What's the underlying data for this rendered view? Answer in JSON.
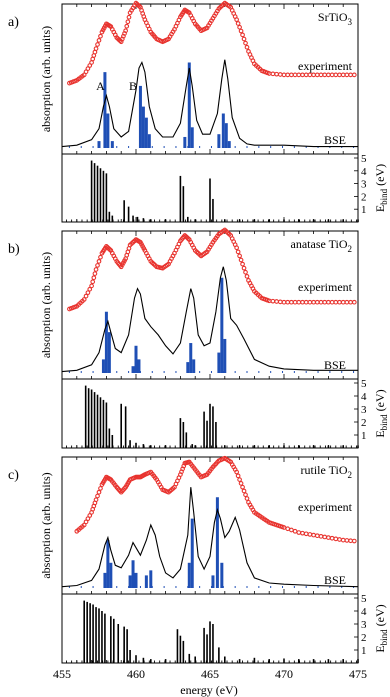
{
  "figure": {
    "x_axis_label": "energy (eV)",
    "y_axis_label_abs": "absorption (arb. units)",
    "y_axis_label_bind_main": "E",
    "y_axis_label_bind_sub": "bind",
    "y_axis_label_bind_unit": "(eV)",
    "x_ticks": [
      "455",
      "460",
      "465",
      "470",
      "475"
    ],
    "bind_ticks": [
      "1",
      "2",
      "3",
      "4",
      "5"
    ]
  },
  "chart_data": [
    {
      "panel": "a)",
      "material": "SrTiO",
      "material_sub": "3",
      "type": "line",
      "xlim": [
        455,
        475
      ],
      "series": [
        {
          "name": "experiment",
          "color": "#e8332e",
          "style": "circles",
          "x": [
            455.5,
            456.0,
            456.5,
            457.0,
            457.3,
            457.7,
            458.0,
            458.3,
            458.7,
            459.0,
            459.3,
            459.6,
            460.0,
            460.3,
            460.6,
            461.0,
            461.4,
            461.8,
            462.2,
            462.6,
            463.0,
            463.3,
            463.6,
            464.0,
            464.4,
            464.8,
            465.2,
            465.6,
            466.0,
            466.4,
            466.8,
            467.2,
            467.6,
            468.0,
            468.5,
            469.0,
            470,
            471,
            472,
            473,
            474,
            475
          ],
          "y": [
            0.47,
            0.49,
            0.53,
            0.62,
            0.72,
            0.84,
            0.9,
            0.88,
            0.8,
            0.77,
            0.85,
            0.98,
            1.05,
            1.02,
            0.93,
            0.84,
            0.79,
            0.77,
            0.79,
            0.86,
            0.95,
            1.0,
            0.98,
            0.9,
            0.85,
            0.87,
            0.94,
            1.01,
            1.05,
            1.02,
            0.93,
            0.82,
            0.7,
            0.61,
            0.56,
            0.54,
            0.53,
            0.53,
            0.53,
            0.53,
            0.53,
            0.53
          ]
        },
        {
          "name": "BSE",
          "color": "#000000",
          "style": "line",
          "x": [
            455,
            456,
            457,
            457.5,
            457.8,
            458.0,
            458.2,
            458.5,
            459.0,
            459.5,
            460.0,
            460.2,
            460.4,
            460.6,
            460.9,
            461.3,
            461.8,
            462.5,
            463.0,
            463.4,
            463.6,
            463.8,
            464.1,
            464.5,
            465.0,
            465.5,
            465.8,
            466.0,
            466.2,
            466.5,
            467.0,
            467.5,
            468,
            469,
            470,
            472,
            475
          ],
          "y": [
            0.01,
            0.02,
            0.06,
            0.14,
            0.3,
            0.38,
            0.3,
            0.14,
            0.08,
            0.12,
            0.42,
            0.58,
            0.62,
            0.55,
            0.3,
            0.14,
            0.08,
            0.08,
            0.18,
            0.45,
            0.58,
            0.45,
            0.2,
            0.1,
            0.1,
            0.25,
            0.5,
            0.64,
            0.5,
            0.22,
            0.07,
            0.03,
            0.02,
            0.02,
            0.02,
            0.01,
            0.01
          ]
        }
      ],
      "stick_spectrum": {
        "color": "#1f4fb5",
        "x": [
          457.5,
          457.9,
          458.1,
          458.4,
          460.3,
          460.5,
          460.7,
          460.9,
          463.3,
          463.6,
          463.8,
          465.6,
          465.9,
          466.1,
          466.3
        ],
        "y": [
          0.05,
          0.55,
          0.25,
          0.05,
          0.45,
          0.3,
          0.22,
          0.1,
          0.08,
          0.62,
          0.15,
          0.1,
          0.25,
          0.18,
          0.05
        ]
      },
      "peak_labels": [
        {
          "text": "A",
          "x": 457.6
        },
        {
          "text": "B",
          "x": 459.8
        }
      ],
      "binding_energies": {
        "ylim": [
          0,
          5
        ],
        "x": [
          457.0,
          457.2,
          457.4,
          457.6,
          457.8,
          458.0,
          458.2,
          458.4,
          459.2,
          459.5,
          459.8,
          460.1,
          460.5,
          461.0,
          462.0,
          463.0,
          463.2,
          463.5,
          464.0,
          465.0,
          465.2,
          466,
          467,
          468,
          469,
          470,
          471,
          472,
          473,
          474,
          475
        ],
        "y": [
          4.8,
          4.6,
          4.4,
          4.2,
          4.0,
          3.8,
          0.8,
          0.5,
          1.7,
          1.2,
          0.5,
          0.4,
          0.3,
          0.2,
          0.2,
          3.6,
          2.8,
          0.4,
          0.2,
          3.4,
          1.8,
          0.2,
          0.2,
          0.2,
          0.2,
          0.2,
          0.2,
          0.2,
          0.2,
          0.2,
          0.2
        ]
      }
    },
    {
      "panel": "b)",
      "material": "anatase TiO",
      "material_sub": "2",
      "type": "line",
      "xlim": [
        455,
        475
      ],
      "series": [
        {
          "name": "experiment",
          "color": "#e8332e",
          "style": "circles",
          "x": [
            455.5,
            456.0,
            456.5,
            457.0,
            457.3,
            457.7,
            458.0,
            458.3,
            458.7,
            459.0,
            459.3,
            459.6,
            460.0,
            460.3,
            460.6,
            461.0,
            461.4,
            461.8,
            462.2,
            462.6,
            463.0,
            463.3,
            463.6,
            464.0,
            464.4,
            464.8,
            465.2,
            465.6,
            466.0,
            466.4,
            466.8,
            467.2,
            467.6,
            468.0,
            468.5,
            469.0,
            470,
            471,
            472,
            473,
            474,
            475
          ],
          "y": [
            0.47,
            0.49,
            0.54,
            0.64,
            0.76,
            0.88,
            0.93,
            0.9,
            0.82,
            0.78,
            0.84,
            0.94,
            0.98,
            0.96,
            0.9,
            0.82,
            0.78,
            0.77,
            0.8,
            0.88,
            0.97,
            1.01,
            0.98,
            0.9,
            0.86,
            0.89,
            0.96,
            1.02,
            1.05,
            1.01,
            0.92,
            0.8,
            0.68,
            0.6,
            0.55,
            0.53,
            0.52,
            0.52,
            0.52,
            0.52,
            0.52,
            0.52
          ]
        },
        {
          "name": "BSE",
          "color": "#000000",
          "style": "line",
          "x": [
            455,
            456,
            457,
            457.5,
            457.9,
            458.1,
            458.3,
            458.6,
            459.0,
            459.5,
            459.9,
            460.1,
            460.3,
            460.6,
            461.0,
            461.5,
            462.0,
            462.5,
            463.0,
            463.4,
            463.7,
            463.9,
            464.2,
            464.6,
            465.0,
            465.4,
            465.7,
            465.9,
            466.1,
            466.4,
            466.8,
            467.3,
            468,
            469,
            470,
            472,
            475
          ],
          "y": [
            0.01,
            0.02,
            0.06,
            0.15,
            0.32,
            0.38,
            0.3,
            0.18,
            0.15,
            0.28,
            0.55,
            0.62,
            0.58,
            0.4,
            0.34,
            0.28,
            0.2,
            0.14,
            0.22,
            0.45,
            0.62,
            0.55,
            0.28,
            0.2,
            0.22,
            0.45,
            0.7,
            0.78,
            0.68,
            0.4,
            0.35,
            0.25,
            0.1,
            0.05,
            0.03,
            0.02,
            0.02
          ]
        }
      ],
      "stick_spectrum": {
        "color": "#1f4fb5",
        "x": [
          457.8,
          458.0,
          458.2,
          459.8,
          460.0,
          460.2,
          463.5,
          463.7,
          463.9,
          465.6,
          465.8,
          466.0
        ],
        "y": [
          0.1,
          0.45,
          0.3,
          0.05,
          0.2,
          0.1,
          0.08,
          0.22,
          0.1,
          0.15,
          0.7,
          0.25
        ]
      },
      "peak_labels": [],
      "binding_energies": {
        "ylim": [
          0,
          5
        ],
        "x": [
          456.6,
          456.8,
          457.0,
          457.2,
          457.4,
          457.6,
          457.8,
          458.0,
          458.2,
          458.4,
          459.0,
          459.3,
          459.6,
          460.0,
          460.5,
          461.0,
          462.0,
          463.0,
          463.2,
          463.4,
          463.8,
          464.0,
          464.6,
          464.8,
          465.0,
          465.2,
          465.4,
          466,
          467,
          468,
          469,
          470,
          471,
          472,
          473,
          474,
          475
        ],
        "y": [
          4.8,
          4.6,
          4.5,
          4.3,
          4.1,
          3.9,
          3.7,
          3.5,
          1.5,
          1.0,
          3.4,
          3.2,
          0.6,
          0.4,
          0.3,
          0.2,
          0.2,
          2.3,
          2.0,
          1.2,
          0.3,
          0.2,
          2.8,
          2.1,
          3.4,
          3.2,
          2.0,
          0.2,
          0.2,
          0.2,
          0.2,
          0.2,
          0.2,
          0.2,
          0.2,
          0.2,
          0.2
        ]
      }
    },
    {
      "panel": "c)",
      "material": "rutile TiO",
      "material_sub": "2",
      "type": "line",
      "xlim": [
        455,
        475
      ],
      "series": [
        {
          "name": "experiment",
          "color": "#e8332e",
          "style": "circles",
          "x": [
            456.0,
            456.5,
            457.0,
            457.3,
            457.7,
            458.0,
            458.3,
            458.7,
            459.0,
            459.3,
            459.6,
            460.0,
            460.3,
            460.6,
            461.0,
            461.4,
            461.8,
            462.2,
            462.6,
            463.0,
            463.3,
            463.6,
            464.0,
            464.4,
            464.8,
            465.2,
            465.6,
            466.0,
            466.4,
            466.8,
            467.2,
            467.6,
            468.0,
            468.5,
            469.0,
            469.5,
            470,
            471,
            472,
            473,
            474,
            475
          ],
          "y": [
            0.45,
            0.5,
            0.6,
            0.7,
            0.82,
            0.88,
            0.86,
            0.8,
            0.76,
            0.8,
            0.86,
            0.88,
            0.88,
            0.9,
            0.92,
            0.86,
            0.78,
            0.76,
            0.8,
            0.9,
            0.99,
            1.0,
            0.94,
            0.88,
            0.9,
            0.96,
            1.01,
            1.03,
            1.0,
            0.92,
            0.8,
            0.68,
            0.6,
            0.56,
            0.52,
            0.5,
            0.48,
            0.44,
            0.42,
            0.4,
            0.38,
            0.37
          ]
        },
        {
          "name": "BSE",
          "color": "#000000",
          "style": "line",
          "x": [
            455,
            456,
            457,
            457.5,
            457.9,
            458.1,
            458.3,
            458.6,
            459.0,
            459.5,
            459.8,
            460.0,
            460.3,
            460.7,
            461.0,
            461.3,
            461.6,
            462.0,
            462.5,
            463.0,
            463.5,
            463.7,
            463.9,
            464.2,
            464.6,
            465.0,
            465.3,
            465.5,
            465.7,
            466.0,
            466.3,
            466.7,
            467.0,
            467.5,
            468,
            469,
            470,
            472,
            475
          ],
          "y": [
            0.01,
            0.02,
            0.06,
            0.15,
            0.34,
            0.4,
            0.3,
            0.18,
            0.16,
            0.26,
            0.36,
            0.32,
            0.26,
            0.38,
            0.5,
            0.42,
            0.25,
            0.12,
            0.08,
            0.15,
            0.42,
            0.8,
            0.6,
            0.25,
            0.15,
            0.25,
            0.52,
            0.62,
            0.55,
            0.4,
            0.45,
            0.56,
            0.46,
            0.2,
            0.08,
            0.04,
            0.03,
            0.02,
            0.01
          ]
        }
      ],
      "stick_spectrum": {
        "color": "#1f4fb5",
        "x": [
          457.9,
          458.1,
          458.3,
          459.6,
          459.8,
          460.0,
          460.7,
          461.0,
          463.6,
          463.8,
          465.2,
          465.5,
          465.8
        ],
        "y": [
          0.12,
          0.38,
          0.2,
          0.1,
          0.22,
          0.12,
          0.1,
          0.14,
          0.2,
          0.55,
          0.1,
          0.72,
          0.2
        ]
      },
      "peak_labels": [],
      "binding_energies": {
        "ylim": [
          0,
          5
        ],
        "x": [
          456.5,
          456.7,
          456.9,
          457.1,
          457.3,
          457.5,
          457.7,
          457.9,
          458.3,
          458.5,
          458.8,
          459.2,
          459.4,
          459.6,
          460.0,
          460.5,
          461,
          462,
          462.8,
          463.0,
          463.2,
          463.6,
          464.0,
          464.6,
          464.8,
          465.0,
          465.2,
          465.6,
          466,
          467,
          468,
          469,
          470,
          471,
          472,
          473,
          474,
          475
        ],
        "y": [
          4.8,
          4.7,
          4.6,
          4.5,
          4.3,
          4.2,
          4.0,
          3.8,
          3.6,
          3.4,
          3.0,
          2.8,
          2.6,
          1.0,
          0.6,
          0.4,
          0.3,
          0.3,
          2.6,
          2.1,
          1.7,
          0.7,
          0.5,
          2.7,
          2.2,
          3.2,
          3.0,
          1.2,
          0.5,
          0.3,
          0.4,
          0.3,
          0.3,
          0.3,
          0.3,
          0.3,
          0.3,
          0.3
        ]
      }
    }
  ]
}
